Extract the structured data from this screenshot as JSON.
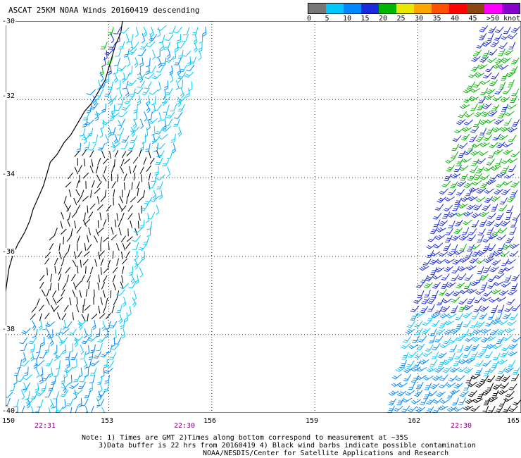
{
  "title": "ASCAT 25KM NOAA Winds 20160419 descending",
  "legend": {
    "colors": [
      "#777777",
      "#00c8ff",
      "#0088ff",
      "#1a2adb",
      "#00b400",
      "#e8e800",
      "#ffa500",
      "#ff5000",
      "#ff0000",
      "#8b4513",
      "#ff00ff",
      "#8800cc"
    ],
    "labels": [
      "0",
      "5",
      "10",
      "15",
      "20",
      "25",
      "30",
      "35",
      "40",
      "45",
      ">50 knots"
    ]
  },
  "axes": {
    "lat_labels": [
      "-30",
      "-32",
      "-34",
      "-36",
      "-38",
      "-40"
    ],
    "lon_labels": [
      "150",
      "153",
      "156",
      "159",
      "162",
      "165"
    ]
  },
  "times": [
    "22:31",
    "22:30",
    "22:30"
  ],
  "notes": {
    "line1": "Note: 1) Times are GMT 2)Times along bottom correspond to measurement at ~35S",
    "line2": "3)Data buffer is 22 hrs from 20160419 4) Black wind barbs indicate possible contamination",
    "line3": "NOAA/NESDIS/Center for Satellite Applications and Research"
  },
  "map": {
    "lat_range": [
      -40,
      -30
    ],
    "lon_range": [
      150,
      165
    ],
    "grid_style": "dotted",
    "barb_colors": {
      "contaminated": "#000000",
      "light": "#00c8ff",
      "moderate": "#0088ff",
      "fresh": "#1a2adb",
      "strong": "#00b400"
    }
  }
}
